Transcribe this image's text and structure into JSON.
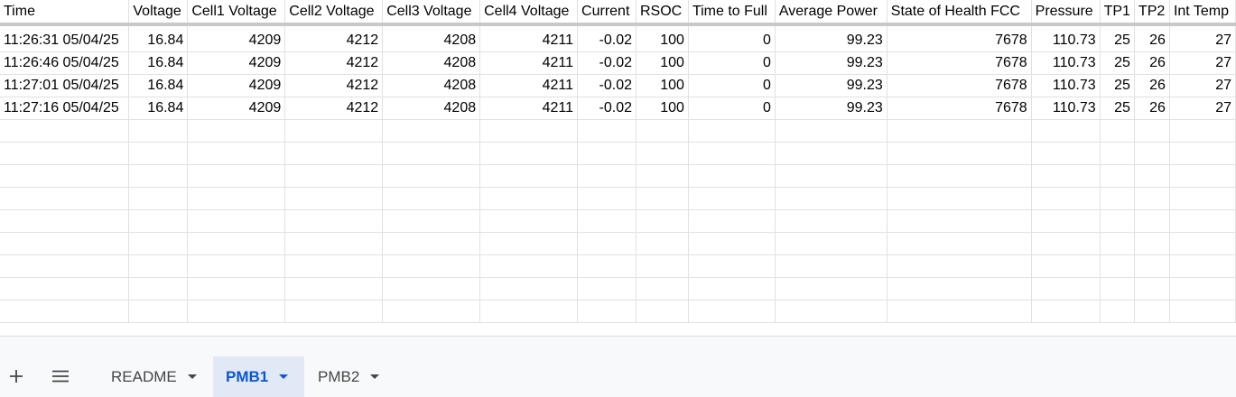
{
  "columns": [
    "Time",
    "Voltage",
    "Cell1 Voltage",
    "Cell2 Voltage",
    "Cell3 Voltage",
    "Cell4 Voltage",
    "Current",
    "RSOC",
    "Time to Full",
    "Average Power",
    "State of Health FCC",
    "Pressure",
    "TP1",
    "TP2",
    "Int Temp"
  ],
  "rows": [
    [
      "11:26:31 05/04/25",
      "16.84",
      "4209",
      "4212",
      "4208",
      "4211",
      "-0.02",
      "100",
      "0",
      "99.23",
      "7678",
      "110.73",
      "25",
      "26",
      "27"
    ],
    [
      "11:26:46 05/04/25",
      "16.84",
      "4209",
      "4212",
      "4208",
      "4211",
      "-0.02",
      "100",
      "0",
      "99.23",
      "7678",
      "110.73",
      "25",
      "26",
      "27"
    ],
    [
      "11:27:01 05/04/25",
      "16.84",
      "4209",
      "4212",
      "4208",
      "4211",
      "-0.02",
      "100",
      "0",
      "99.23",
      "7678",
      "110.73",
      "25",
      "26",
      "27"
    ],
    [
      "11:27:16 05/04/25",
      "16.84",
      "4209",
      "4212",
      "4208",
      "4211",
      "-0.02",
      "100",
      "0",
      "99.23",
      "7678",
      "110.73",
      "25",
      "26",
      "27"
    ]
  ],
  "tabs": [
    {
      "label": "README",
      "active": false
    },
    {
      "label": "PMB1",
      "active": true
    },
    {
      "label": "PMB2",
      "active": false
    }
  ],
  "icons": {
    "add_sheet": "plus-icon",
    "all_sheets": "menu-icon"
  },
  "colors": {
    "active_tab_bg": "#e1e9f7",
    "active_tab_text": "#0b57d0",
    "gridline": "#e1e1e1"
  }
}
